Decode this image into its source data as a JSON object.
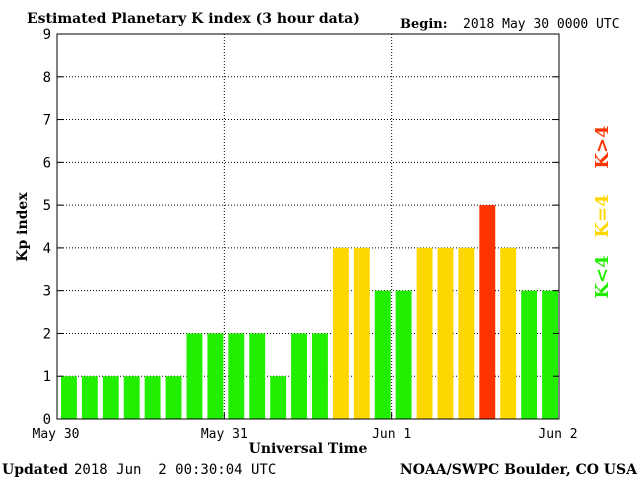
{
  "chart_data": {
    "type": "bar",
    "title": "Estimated Planetary K index (3 hour data)",
    "begin_label": "Begin:",
    "begin_value": "2018 May 30 0000 UTC",
    "xlabel": "Universal Time",
    "ylabel": "Kp index",
    "ylim": [
      0,
      9
    ],
    "yticks": [
      "0",
      "1",
      "2",
      "3",
      "4",
      "5",
      "6",
      "7",
      "8",
      "9"
    ],
    "xtick_labels": [
      "May 30",
      "May 31",
      "Jun 1",
      "Jun 2"
    ],
    "grid": true,
    "values": [
      1,
      1,
      1,
      1,
      1,
      1,
      2,
      2,
      2,
      2,
      1,
      2,
      2,
      4,
      4,
      3,
      3,
      4,
      4,
      4,
      5,
      4,
      3,
      3
    ],
    "legend": [
      {
        "label": "K<4",
        "color": "#22ee00"
      },
      {
        "label": "K=4",
        "color": "#ffd700"
      },
      {
        "label": "K>4",
        "color": "#ff3300"
      }
    ]
  },
  "footer": {
    "updated_label": "Updated",
    "updated_value": "2018 Jun  2 00:30:04 UTC",
    "credit": "NOAA/SWPC Boulder, CO USA"
  }
}
